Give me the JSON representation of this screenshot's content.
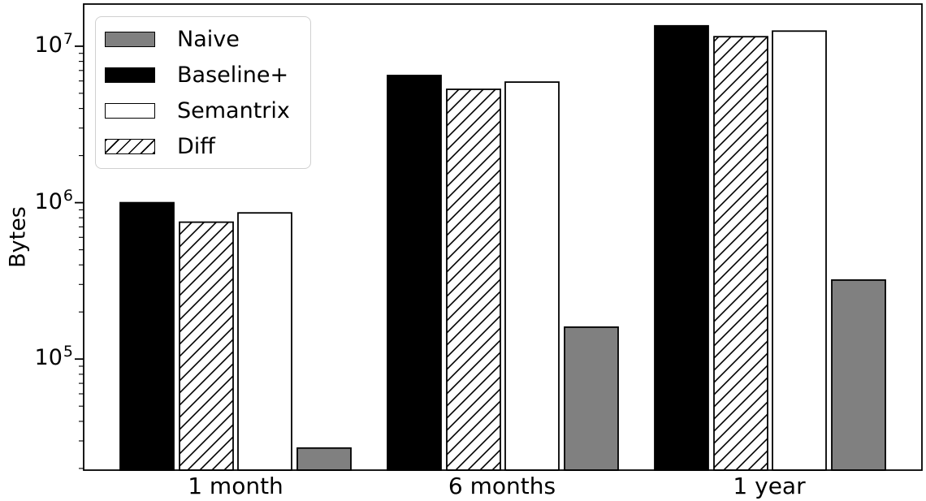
{
  "chart_data": {
    "type": "bar",
    "title": "",
    "xlabel": "",
    "ylabel": "Bytes",
    "yscale": "log",
    "ylim": [
      19500,
      18600000
    ],
    "grid": false,
    "legend_position": "upper left",
    "yticks": [
      {
        "base": "10",
        "exp": "5",
        "value": 100000
      },
      {
        "base": "10",
        "exp": "6",
        "value": 1000000
      },
      {
        "base": "10",
        "exp": "7",
        "value": 10000000
      }
    ],
    "categories": [
      "1 month",
      "6 months",
      "1 year"
    ],
    "legend": [
      {
        "label": "Naive",
        "style": "naive"
      },
      {
        "label": "Baseline+",
        "style": "baseline"
      },
      {
        "label": "Semantrix",
        "style": "semantrix"
      },
      {
        "label": "Diff",
        "style": "diff"
      }
    ],
    "colors": {
      "naive": "#808080",
      "baseline": "#000000",
      "semantrix": "#ffffff",
      "diff": "#ffffff",
      "edge": "#000000",
      "hatch": "#000000",
      "legend_border": "#d0d0d0"
    },
    "series": [
      {
        "name": "Baseline+",
        "style": "baseline",
        "values": [
          1000000,
          6500000,
          13500000
        ]
      },
      {
        "name": "Diff",
        "style": "diff",
        "values": [
          750000,
          5300000,
          11500000
        ]
      },
      {
        "name": "Semantrix",
        "style": "semantrix",
        "values": [
          860000,
          5900000,
          12500000
        ]
      },
      {
        "name": "Naive",
        "style": "naive",
        "values": [
          27000,
          160000,
          320000
        ]
      }
    ]
  }
}
